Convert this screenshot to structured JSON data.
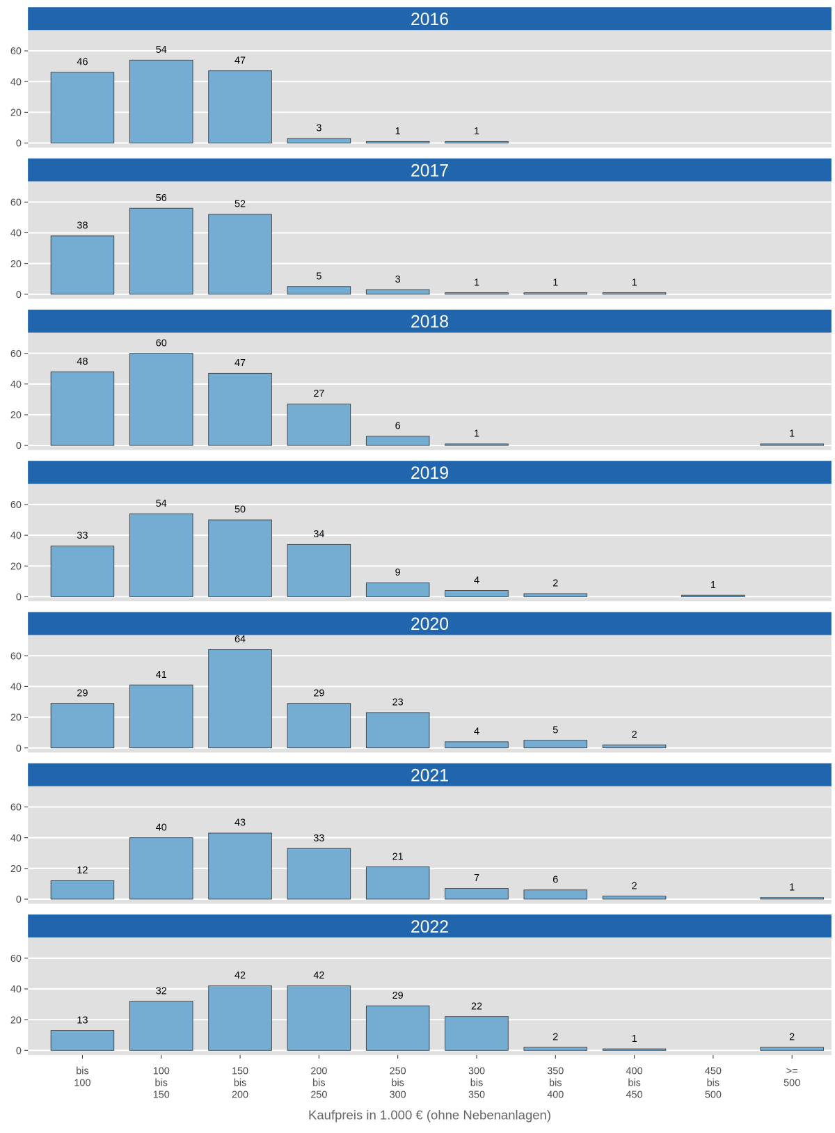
{
  "chart_data": [
    {
      "type": "bar",
      "title": "2016",
      "values": [
        46,
        54,
        47,
        3,
        1,
        1,
        null,
        null,
        null,
        null
      ],
      "color": "#74acd2",
      "ylim": [
        -3,
        73.5
      ],
      "yticks": [
        0,
        20,
        40,
        60
      ],
      "grid": true
    },
    {
      "type": "bar",
      "title": "2017",
      "values": [
        38,
        56,
        52,
        5,
        3,
        1,
        1,
        1,
        null,
        null
      ],
      "color": "#74acd2",
      "ylim": [
        -3,
        73.5
      ],
      "yticks": [
        0,
        20,
        40,
        60
      ],
      "grid": true
    },
    {
      "type": "bar",
      "title": "2018",
      "values": [
        48,
        60,
        47,
        27,
        6,
        1,
        null,
        null,
        null,
        1
      ],
      "color": "#74acd2",
      "ylim": [
        -3,
        73.5
      ],
      "yticks": [
        0,
        20,
        40,
        60
      ],
      "grid": true
    },
    {
      "type": "bar",
      "title": "2019",
      "values": [
        33,
        54,
        50,
        34,
        9,
        4,
        2,
        null,
        1,
        null
      ],
      "color": "#74acd2",
      "ylim": [
        -3,
        73.5
      ],
      "yticks": [
        0,
        20,
        40,
        60
      ],
      "grid": true
    },
    {
      "type": "bar",
      "title": "2020",
      "values": [
        29,
        41,
        64,
        29,
        23,
        4,
        5,
        2,
        null,
        null
      ],
      "color": "#74acd2",
      "ylim": [
        -3,
        73.5
      ],
      "yticks": [
        0,
        20,
        40,
        60
      ],
      "grid": true
    },
    {
      "type": "bar",
      "title": "2021",
      "values": [
        12,
        40,
        43,
        33,
        21,
        7,
        6,
        2,
        null,
        1
      ],
      "color": "#74acd2",
      "ylim": [
        -3,
        73.5
      ],
      "yticks": [
        0,
        20,
        40,
        60
      ],
      "grid": true
    },
    {
      "type": "bar",
      "title": "2022",
      "values": [
        13,
        32,
        42,
        42,
        29,
        22,
        2,
        1,
        null,
        2
      ],
      "color": "#74acd2",
      "ylim": [
        -3,
        73.5
      ],
      "yticks": [
        0,
        20,
        40,
        60
      ],
      "grid": true,
      "categories": [
        "bis\n100",
        "100\nbis\n150",
        "150\nbis\n200",
        "200\nbis\n250",
        "250\nbis\n300",
        "300\nbis\n350",
        "350\nbis\n400",
        "400\nbis\n450",
        "450\nbis\n500",
        ">=\n500"
      ],
      "xlabel": "Kaufpreis in 1.000 € (ohne Nebenanlagen)"
    }
  ]
}
